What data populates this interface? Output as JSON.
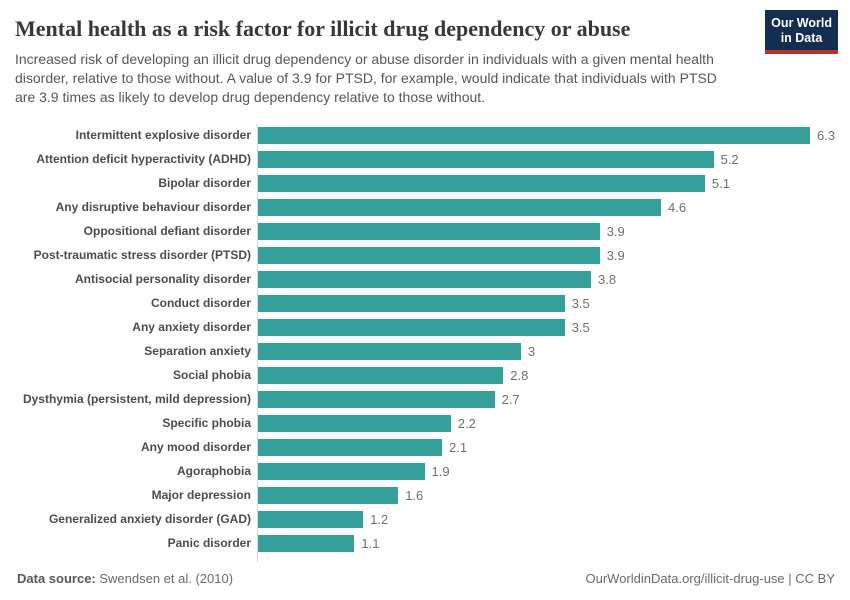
{
  "header": {
    "title": "Mental health as a risk factor for illicit drug dependency or abuse",
    "subtitle": "Increased risk of developing an illicit drug dependency or abuse disorder in individuals with a given mental health disorder, relative to those without. A value of 3.9 for PTSD, for example, would indicate that individuals with PTSD are 3.9 times as likely to develop drug dependency relative to those without.",
    "logo": {
      "line1": "Our World",
      "line2": "in Data"
    }
  },
  "chart_data": {
    "type": "bar",
    "orientation": "horizontal",
    "title": "Mental health as a risk factor for illicit drug dependency or abuse",
    "categories": [
      "Intermittent explosive disorder",
      "Attention deficit hyperactivity (ADHD)",
      "Bipolar disorder",
      "Any disruptive behaviour disorder",
      "Oppositional defiant disorder",
      "Post-traumatic stress disorder (PTSD)",
      "Antisocial personality disorder",
      "Conduct disorder",
      "Any anxiety disorder",
      "Separation anxiety",
      "Social phobia",
      "Dysthymia (persistent, mild depression)",
      "Specific phobia",
      "Any mood disorder",
      "Agoraphobia",
      "Major depression",
      "Generalized anxiety disorder (GAD)",
      "Panic disorder"
    ],
    "values": [
      6.3,
      5.2,
      5.1,
      4.6,
      3.9,
      3.9,
      3.8,
      3.5,
      3.5,
      3,
      2.8,
      2.7,
      2.2,
      2.1,
      1.9,
      1.6,
      1.2,
      1.1
    ],
    "value_labels": [
      "6.3",
      "5.2",
      "5.1",
      "4.6",
      "3.9",
      "3.9",
      "3.8",
      "3.5",
      "3.5",
      "3",
      "2.8",
      "2.7",
      "2.2",
      "2.1",
      "1.9",
      "1.6",
      "1.2",
      "1.1"
    ],
    "xlabel": "",
    "ylabel": "",
    "xlim": [
      0,
      6.3
    ],
    "grid": false,
    "legend": "none",
    "bar_color": "#37a09a"
  },
  "footer": {
    "source_label": "Data source:",
    "source_value": " Swendsen et al. (2010)",
    "attribution": "OurWorldinData.org/illicit-drug-use | CC BY"
  },
  "colors": {
    "accent_teal": "#37a09a",
    "logo_navy": "#142e52",
    "logo_red": "#b5342c",
    "axis_line": "#d6d6d6"
  }
}
